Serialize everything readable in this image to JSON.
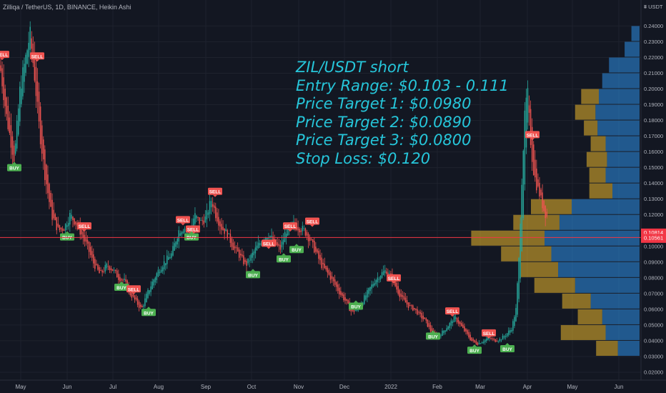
{
  "header": {
    "symbol_text": "Zilliqa / TetherUS, 1D, BINANCE, Heikin Ashi"
  },
  "annotation_lines": [
    "ZIL/USDT short",
    "Entry Range: $0.103 - 0.111",
    "Price Target 1: $0.0980",
    "Price Target 2: $0.0890",
    "Price Target 3: $0.0800",
    "Stop Loss: $0.120"
  ],
  "axis": {
    "currency_label": "USDT",
    "price_ticks": [
      "0.24000",
      "0.23000",
      "0.22000",
      "0.21000",
      "0.20000",
      "0.19000",
      "0.18000",
      "0.17000",
      "0.16000",
      "0.15000",
      "0.14000",
      "0.13000",
      "0.12000",
      "0.11000",
      "0.10000",
      "0.09000",
      "0.08000",
      "0.07000",
      "0.06000",
      "0.05000",
      "0.04000",
      "0.03000",
      "0.02000"
    ],
    "time_labels": [
      "May",
      "Jun",
      "Jul",
      "Aug",
      "Sep",
      "Oct",
      "Nov",
      "Dec",
      "2022",
      "Feb",
      "Mar",
      "Apr",
      "May",
      "Jun"
    ],
    "current_price_label": "0.10814",
    "countdown_label": "01:42:52",
    "line_price_label": "0.10561"
  },
  "colors": {
    "background": "#131722",
    "up": "#26a69a",
    "down": "#ef5350",
    "buy_label": "#4caf50",
    "sell_label": "#f05350",
    "annotation": "#26c6da",
    "horizontal_line": "#f23645",
    "volume_buy": "#2a83d0",
    "volume_sell": "#d4a62a"
  },
  "chart_data": {
    "type": "candlestick",
    "ylim": [
      0.015,
      0.252
    ],
    "x_label_points": [
      {
        "label": "May",
        "x": 29
      },
      {
        "label": "Jun",
        "x": 94
      },
      {
        "label": "Jul",
        "x": 158
      },
      {
        "label": "Aug",
        "x": 222
      },
      {
        "label": "Sep",
        "x": 288
      },
      {
        "label": "Oct",
        "x": 352
      },
      {
        "label": "Nov",
        "x": 418
      },
      {
        "label": "Dec",
        "x": 482
      },
      {
        "label": "2022",
        "x": 547
      },
      {
        "label": "Feb",
        "x": 612
      },
      {
        "label": "Mar",
        "x": 672
      },
      {
        "label": "Apr",
        "x": 738
      },
      {
        "label": "May",
        "x": 801
      },
      {
        "label": "Jun",
        "x": 866
      }
    ],
    "price_path_x": [
      0,
      10,
      20,
      28,
      36,
      42,
      48,
      55,
      63,
      72,
      82,
      90,
      98,
      106,
      114,
      122,
      130,
      140,
      150,
      158,
      166,
      174,
      182,
      190,
      198,
      206,
      214,
      222,
      230,
      240,
      250,
      258,
      266,
      272,
      280,
      288,
      296,
      302,
      310,
      318,
      326,
      334,
      344,
      352,
      360,
      368,
      376,
      384,
      392,
      400,
      410,
      418,
      426,
      434,
      442,
      450,
      460,
      468,
      476,
      484,
      492,
      500,
      508,
      516,
      524,
      532,
      540,
      548,
      556,
      564,
      572,
      580,
      588,
      596,
      604,
      612,
      620,
      628,
      636,
      644,
      652,
      660,
      668,
      676,
      684,
      692,
      700,
      708,
      716,
      722,
      726,
      730,
      734,
      738,
      742,
      746,
      750,
      754,
      758,
      762,
      766
    ],
    "price_path_y": [
      0.215,
      0.18,
      0.155,
      0.2,
      0.22,
      0.235,
      0.21,
      0.175,
      0.145,
      0.12,
      0.11,
      0.112,
      0.12,
      0.115,
      0.108,
      0.1,
      0.09,
      0.082,
      0.088,
      0.085,
      0.08,
      0.078,
      0.07,
      0.065,
      0.06,
      0.07,
      0.078,
      0.085,
      0.09,
      0.095,
      0.11,
      0.112,
      0.108,
      0.12,
      0.115,
      0.118,
      0.13,
      0.12,
      0.112,
      0.108,
      0.1,
      0.095,
      0.088,
      0.094,
      0.1,
      0.105,
      0.108,
      0.102,
      0.098,
      0.11,
      0.114,
      0.112,
      0.11,
      0.104,
      0.096,
      0.088,
      0.082,
      0.076,
      0.07,
      0.065,
      0.058,
      0.06,
      0.066,
      0.072,
      0.078,
      0.082,
      0.085,
      0.08,
      0.072,
      0.066,
      0.062,
      0.06,
      0.056,
      0.052,
      0.045,
      0.042,
      0.046,
      0.05,
      0.055,
      0.05,
      0.045,
      0.04,
      0.038,
      0.04,
      0.042,
      0.04,
      0.041,
      0.044,
      0.048,
      0.06,
      0.09,
      0.14,
      0.18,
      0.2,
      0.17,
      0.15,
      0.14,
      0.135,
      0.128,
      0.122,
      0.118
    ],
    "signals": [
      {
        "type": "SELL",
        "x": 3,
        "price": 0.222
      },
      {
        "type": "SELL",
        "x": 52,
        "price": 0.221
      },
      {
        "type": "BUY",
        "x": 20,
        "price": 0.15
      },
      {
        "type": "SELL",
        "x": 118,
        "price": 0.113
      },
      {
        "type": "BUY",
        "x": 94,
        "price": 0.106
      },
      {
        "type": "BUY",
        "x": 170,
        "price": 0.074
      },
      {
        "type": "SELL",
        "x": 187,
        "price": 0.073
      },
      {
        "type": "BUY",
        "x": 208,
        "price": 0.058
      },
      {
        "type": "SELL",
        "x": 256,
        "price": 0.117
      },
      {
        "type": "SELL",
        "x": 270,
        "price": 0.111
      },
      {
        "type": "BUY",
        "x": 268,
        "price": 0.106
      },
      {
        "type": "SELL",
        "x": 301,
        "price": 0.135
      },
      {
        "type": "BUY",
        "x": 354,
        "price": 0.082
      },
      {
        "type": "SELL",
        "x": 376,
        "price": 0.102
      },
      {
        "type": "BUY",
        "x": 397,
        "price": 0.092
      },
      {
        "type": "SELL",
        "x": 406,
        "price": 0.113
      },
      {
        "type": "BUY",
        "x": 415,
        "price": 0.098
      },
      {
        "type": "SELL",
        "x": 437,
        "price": 0.116
      },
      {
        "type": "BUY",
        "x": 498,
        "price": 0.062
      },
      {
        "type": "SELL",
        "x": 551,
        "price": 0.08
      },
      {
        "type": "BUY",
        "x": 606,
        "price": 0.043
      },
      {
        "type": "SELL",
        "x": 633,
        "price": 0.059
      },
      {
        "type": "BUY",
        "x": 664,
        "price": 0.034
      },
      {
        "type": "SELL",
        "x": 684,
        "price": 0.045
      },
      {
        "type": "BUY",
        "x": 710,
        "price": 0.035
      },
      {
        "type": "SELL",
        "x": 745,
        "price": 0.171
      }
    ],
    "volume_profile": [
      {
        "price_low": 0.23,
        "price_high": 0.24,
        "buy": 12,
        "sell": 0
      },
      {
        "price_low": 0.22,
        "price_high": 0.23,
        "buy": 22,
        "sell": 0
      },
      {
        "price_low": 0.21,
        "price_high": 0.22,
        "buy": 45,
        "sell": 0
      },
      {
        "price_low": 0.2,
        "price_high": 0.21,
        "buy": 55,
        "sell": 0
      },
      {
        "price_low": 0.19,
        "price_high": 0.2,
        "buy": 60,
        "sell": 26
      },
      {
        "price_low": 0.18,
        "price_high": 0.19,
        "buy": 65,
        "sell": 30
      },
      {
        "price_low": 0.17,
        "price_high": 0.18,
        "buy": 62,
        "sell": 20
      },
      {
        "price_low": 0.16,
        "price_high": 0.17,
        "buy": 50,
        "sell": 22
      },
      {
        "price_low": 0.15,
        "price_high": 0.16,
        "buy": 48,
        "sell": 30
      },
      {
        "price_low": 0.14,
        "price_high": 0.15,
        "buy": 50,
        "sell": 24
      },
      {
        "price_low": 0.13,
        "price_high": 0.14,
        "buy": 40,
        "sell": 34
      },
      {
        "price_low": 0.12,
        "price_high": 0.13,
        "buy": 100,
        "sell": 60
      },
      {
        "price_low": 0.11,
        "price_high": 0.12,
        "buy": 118,
        "sell": 68
      },
      {
        "price_low": 0.1,
        "price_high": 0.11,
        "buy": 140,
        "sell": 108
      },
      {
        "price_low": 0.09,
        "price_high": 0.1,
        "buy": 130,
        "sell": 74
      },
      {
        "price_low": 0.08,
        "price_high": 0.09,
        "buy": 120,
        "sell": 55
      },
      {
        "price_low": 0.07,
        "price_high": 0.08,
        "buy": 95,
        "sell": 60
      },
      {
        "price_low": 0.06,
        "price_high": 0.07,
        "buy": 72,
        "sell": 42
      },
      {
        "price_low": 0.05,
        "price_high": 0.06,
        "buy": 55,
        "sell": 36
      },
      {
        "price_low": 0.04,
        "price_high": 0.05,
        "buy": 50,
        "sell": 66
      },
      {
        "price_low": 0.03,
        "price_high": 0.04,
        "buy": 32,
        "sell": 32
      }
    ],
    "current_price": 0.10814,
    "horizontal_line_price": 0.10561
  }
}
